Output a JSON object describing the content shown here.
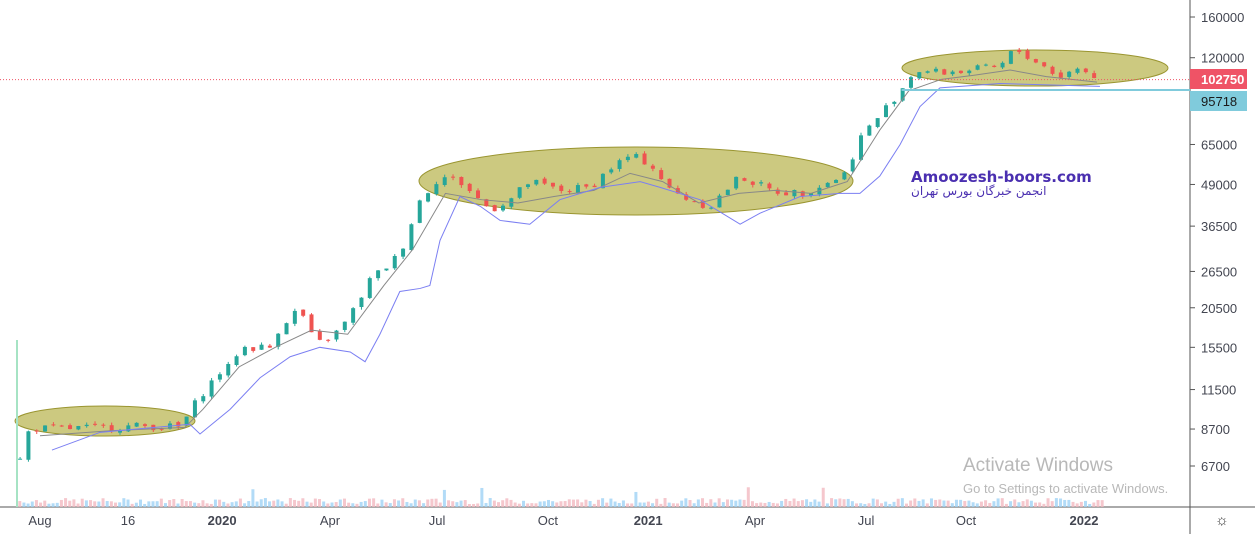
{
  "chart_data": {
    "type": "candlestick",
    "scale": "log",
    "x_unit": "months since Jul 2019 (display scale)",
    "x_ticks": [
      {
        "label": "Aug",
        "m": 1.0
      },
      {
        "label": "16",
        "m": 3.43
      },
      {
        "label": "2020",
        "m": 6.03
      },
      {
        "label": "Apr",
        "m": 9.01
      },
      {
        "label": "Jul",
        "m": 11.97
      },
      {
        "label": "Oct",
        "m": 15.03
      },
      {
        "label": "2021",
        "m": 17.8
      },
      {
        "label": "Apr",
        "m": 20.75
      },
      {
        "label": "Jul",
        "m": 23.82
      },
      {
        "label": "Oct",
        "m": 26.58
      },
      {
        "label": "2022",
        "m": 29.84
      }
    ],
    "y_ticks": [
      "160000",
      "120000",
      "65000",
      "49000",
      "36500",
      "26500",
      "20500",
      "15500",
      "11500",
      "8700",
      "6700"
    ],
    "ylim": [
      5600,
      200000
    ],
    "price_path": [
      [
        0.45,
        7000
      ],
      [
        0.72,
        8800
      ],
      [
        1.28,
        8700
      ],
      [
        2.66,
        8800
      ],
      [
        4.04,
        8900
      ],
      [
        4.87,
        8800
      ],
      [
        5.14,
        9800
      ],
      [
        5.42,
        11000
      ],
      [
        5.97,
        13000
      ],
      [
        6.25,
        13500
      ],
      [
        6.52,
        15500
      ],
      [
        7.35,
        15500
      ],
      [
        7.63,
        18000
      ],
      [
        8.18,
        20500
      ],
      [
        8.46,
        17000
      ],
      [
        8.73,
        16000
      ],
      [
        9.29,
        17500
      ],
      [
        9.7,
        20500
      ],
      [
        10.12,
        25000
      ],
      [
        10.66,
        28000
      ],
      [
        10.94,
        30000
      ],
      [
        11.22,
        36500
      ],
      [
        11.5,
        44000
      ],
      [
        12.05,
        52000
      ],
      [
        12.6,
        50000
      ],
      [
        13.43,
        41000
      ],
      [
        13.98,
        44000
      ],
      [
        14.53,
        50000
      ],
      [
        15.36,
        47000
      ],
      [
        16.19,
        48000
      ],
      [
        16.75,
        55000
      ],
      [
        17.3,
        60000
      ],
      [
        17.85,
        57000
      ],
      [
        18.4,
        47000
      ],
      [
        18.96,
        44000
      ],
      [
        19.51,
        42000
      ],
      [
        20.34,
        52000
      ],
      [
        21.17,
        47000
      ],
      [
        22.0,
        46000
      ],
      [
        22.82,
        50000
      ],
      [
        23.24,
        53000
      ],
      [
        23.65,
        68000
      ],
      [
        24.2,
        80000
      ],
      [
        24.76,
        95000
      ],
      [
        25.17,
        110000
      ],
      [
        25.86,
        108000
      ],
      [
        26.69,
        110000
      ],
      [
        27.52,
        112000
      ],
      [
        27.93,
        128000
      ],
      [
        28.62,
        115000
      ],
      [
        29.18,
        105000
      ],
      [
        29.73,
        112000
      ],
      [
        30.28,
        102750
      ]
    ],
    "ma_slow": [
      [
        1.33,
        7500
      ],
      [
        2.66,
        8500
      ],
      [
        5.14,
        9000
      ],
      [
        5.42,
        8400
      ],
      [
        6.25,
        10000
      ],
      [
        7.08,
        12500
      ],
      [
        7.91,
        14500
      ],
      [
        8.73,
        15500
      ],
      [
        9.57,
        15000
      ],
      [
        9.98,
        14000
      ],
      [
        10.39,
        17000
      ],
      [
        10.94,
        23000
      ],
      [
        11.5,
        23500
      ],
      [
        11.77,
        24000
      ],
      [
        12.05,
        33000
      ],
      [
        12.6,
        45000
      ],
      [
        13.16,
        42000
      ],
      [
        13.71,
        38000
      ],
      [
        14.53,
        37000
      ],
      [
        15.36,
        44000
      ],
      [
        16.47,
        48000
      ],
      [
        17.58,
        50000
      ],
      [
        18.13,
        48000
      ],
      [
        19.23,
        44000
      ],
      [
        20.34,
        37000
      ],
      [
        20.89,
        40000
      ],
      [
        22.0,
        45000
      ],
      [
        23.1,
        46000
      ],
      [
        23.65,
        46000
      ],
      [
        24.2,
        52000
      ],
      [
        24.76,
        65000
      ],
      [
        25.31,
        85000
      ],
      [
        25.86,
        97000
      ],
      [
        27.52,
        100000
      ],
      [
        30.28,
        98000
      ]
    ],
    "ma_fast": [
      [
        1.0,
        8300
      ],
      [
        3.0,
        8600
      ],
      [
        5.0,
        8800
      ],
      [
        5.5,
        10000
      ],
      [
        6.5,
        13500
      ],
      [
        7.5,
        15500
      ],
      [
        8.5,
        17500
      ],
      [
        9.5,
        17000
      ],
      [
        10.5,
        24000
      ],
      [
        11.3,
        31000
      ],
      [
        12.2,
        46000
      ],
      [
        13.2,
        44000
      ],
      [
        14.2,
        43000
      ],
      [
        15.2,
        45000
      ],
      [
        16.3,
        47000
      ],
      [
        17.3,
        53000
      ],
      [
        18.2,
        50000
      ],
      [
        19.2,
        43000
      ],
      [
        20.3,
        46000
      ],
      [
        21.3,
        47000
      ],
      [
        22.3,
        46000
      ],
      [
        23.3,
        50000
      ],
      [
        24.2,
        72000
      ],
      [
        25.0,
        95000
      ],
      [
        25.9,
        103000
      ],
      [
        26.8,
        106000
      ],
      [
        27.8,
        110000
      ],
      [
        28.8,
        105000
      ],
      [
        30.2,
        101000
      ]
    ],
    "last_price": {
      "label": "102750",
      "value": 102750,
      "color": "#ef5366"
    },
    "ma_label": {
      "label": "95718",
      "value": 95718,
      "color": "#80cbdc"
    },
    "colors": {
      "up": "#26a69a",
      "down": "#ef5350",
      "ma_slow": "#7b7ff2",
      "ma_fast": "#888888",
      "ellipse": "#b7b24a"
    }
  },
  "watermark": {
    "brand": "Amoozesh-boors.com",
    "brand_fa": "انجمن خبرگان بورس تهران"
  },
  "os_overlay": {
    "title": "Activate Windows",
    "subtitle": "Go to Settings to activate Windows."
  },
  "settings_icon": "gear-icon"
}
